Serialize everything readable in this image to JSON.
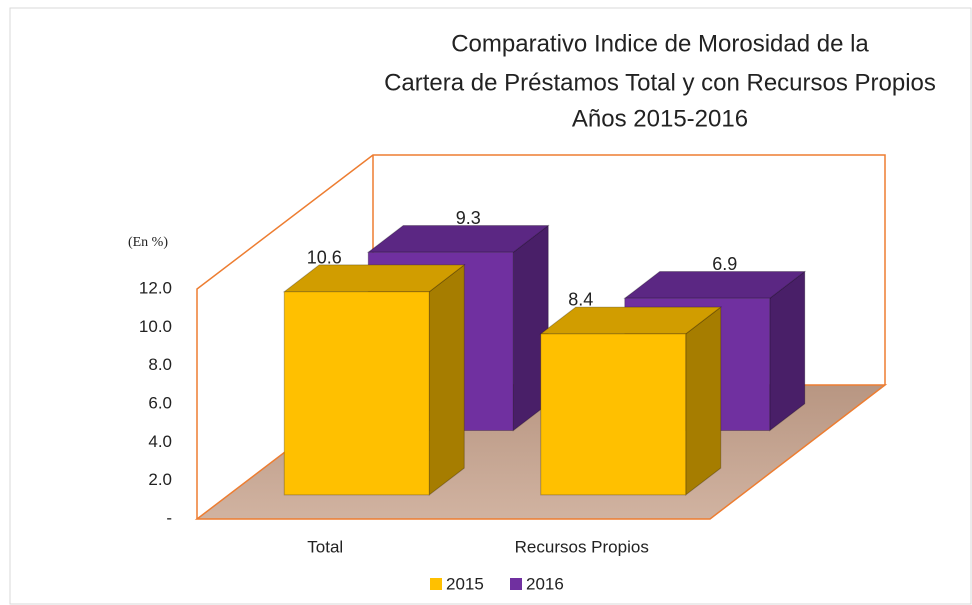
{
  "chart_data": {
    "type": "bar3d",
    "title": [
      "Comparativo Indice de Morosidad de la",
      "Cartera de Préstamos Total y con Recursos Propios",
      "Años 2015-2016"
    ],
    "y_label": "(En %)",
    "categories": [
      "Total",
      "Recursos Propios"
    ],
    "series": [
      {
        "name": "2015",
        "color": "#FFC000",
        "values": [
          10.6,
          8.4
        ]
      },
      {
        "name": "2016",
        "color": "#7030A0",
        "values": [
          9.3,
          6.9
        ]
      }
    ],
    "ylim": [
      0,
      12
    ],
    "yticks": [
      {
        "value": 0,
        "label": "-"
      },
      {
        "value": 2,
        "label": "2.0"
      },
      {
        "value": 4,
        "label": "4.0"
      },
      {
        "value": 6,
        "label": "6.0"
      },
      {
        "value": 8,
        "label": "8.0"
      },
      {
        "value": 10,
        "label": "10.0"
      },
      {
        "value": 12,
        "label": "12.0"
      }
    ],
    "legend": "bottom"
  }
}
